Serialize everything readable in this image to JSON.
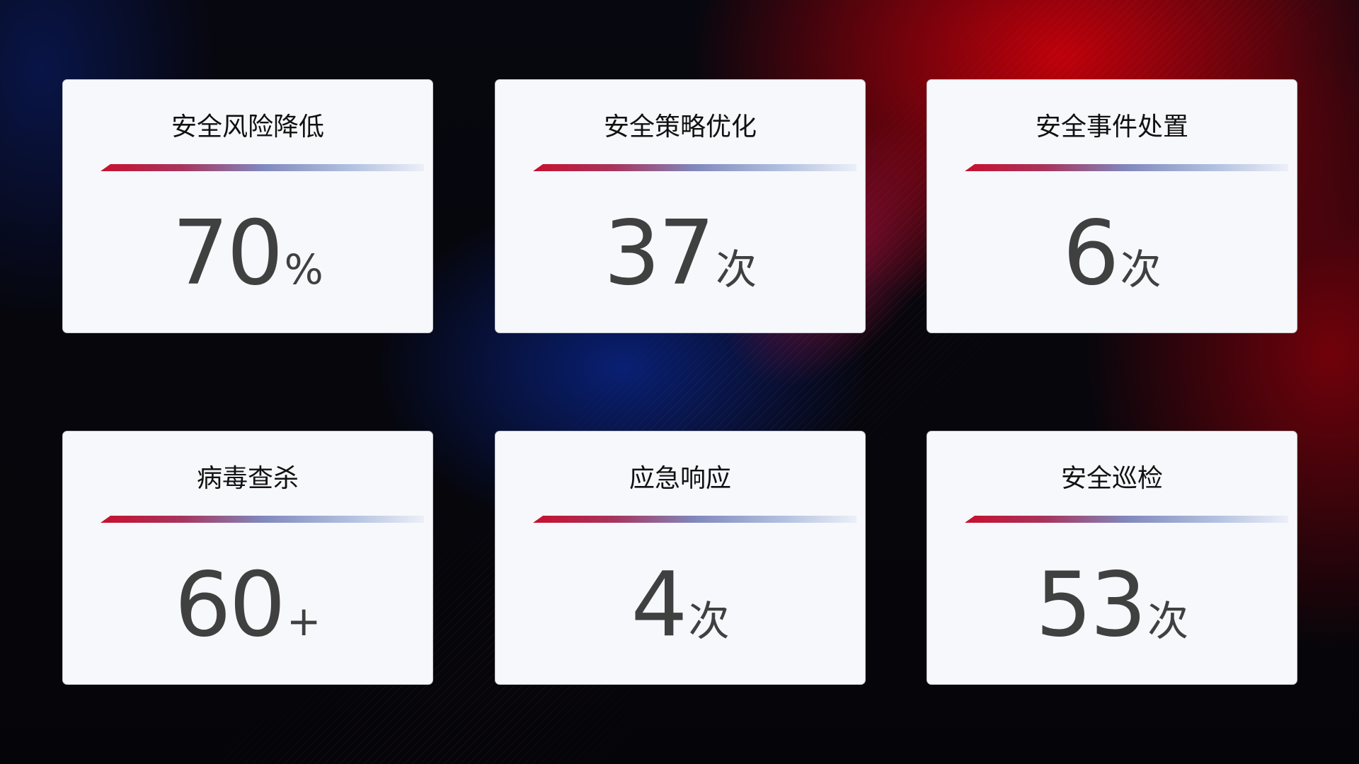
{
  "cards": [
    {
      "title": "安全风险降低",
      "value": "70",
      "unit": "%"
    },
    {
      "title": "安全策略优化",
      "value": "37",
      "unit": "次"
    },
    {
      "title": "安全事件处置",
      "value": "6",
      "unit": "次"
    },
    {
      "title": "病毒查杀",
      "value": "60",
      "unit": "+"
    },
    {
      "title": "应急响应",
      "value": "4",
      "unit": "次"
    },
    {
      "title": "安全巡检",
      "value": "53",
      "unit": "次"
    }
  ],
  "colors": {
    "accent_red": "#c8102e",
    "accent_blue": "#8088bd",
    "card_bg": "#f6f8fc",
    "value_text": "#404040"
  }
}
